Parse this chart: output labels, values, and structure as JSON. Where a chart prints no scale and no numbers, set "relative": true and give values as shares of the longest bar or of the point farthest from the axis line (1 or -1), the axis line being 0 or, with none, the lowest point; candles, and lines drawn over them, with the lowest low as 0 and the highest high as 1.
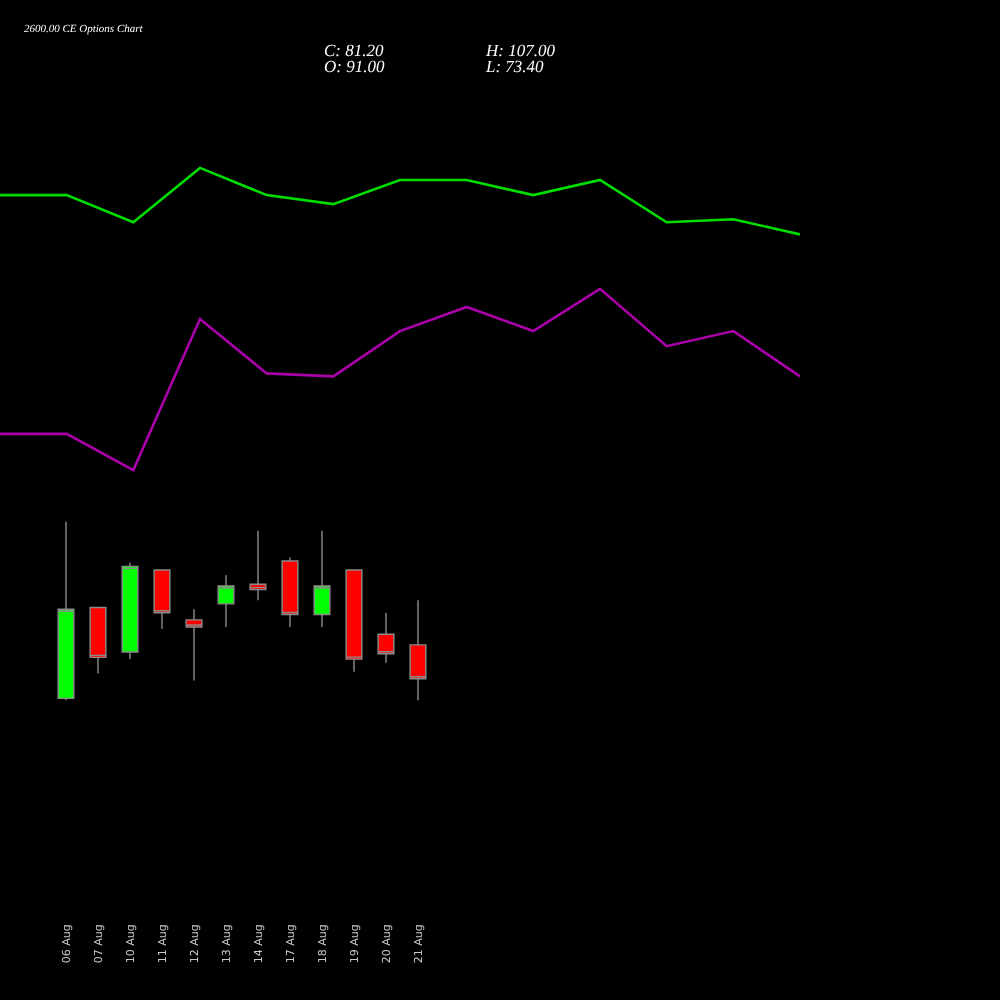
{
  "chart_data": [
    {
      "type": "line",
      "title": "2600.00 CE Options Chart",
      "relative": true,
      "categories": [
        null,
        null,
        null,
        null,
        null,
        null,
        null,
        null,
        null,
        null,
        null,
        null,
        null
      ],
      "series": [
        {
          "color": "#00dd00",
          "values": [
            0.91,
            0.91,
            0.82,
            1.0,
            0.91,
            0.88,
            0.96,
            0.96,
            0.91,
            0.96,
            0.82,
            0.83,
            0.78
          ]
        },
        {
          "color": "#aa00aa",
          "values": [
            0.12,
            0.12,
            0,
            0.5,
            0.32,
            0.31,
            0.46,
            0.54,
            0.46,
            0.6,
            0.41,
            0.46,
            0.31
          ]
        }
      ]
    },
    {
      "type": "candlestick",
      "annotations": [
        "C: 81.20",
        "O: 91.00",
        "H: 107.00",
        "L: 73.40"
      ],
      "relative": true,
      "categories": [
        "06 Aug",
        "07 Aug",
        "10 Aug",
        "11 Aug",
        "12 Aug",
        "13 Aug",
        "14 Aug",
        "17 Aug",
        "18 Aug",
        "19 Aug",
        "20 Aug",
        "21 Aug"
      ],
      "ohlc": [
        [
          0.01,
          1,
          0,
          0.51
        ],
        [
          0.52,
          0.52,
          0.15,
          0.24
        ],
        [
          0.27,
          0.77,
          0.23,
          0.75
        ],
        [
          0.73,
          0.73,
          0.4,
          0.49
        ],
        [
          0.45,
          0.51,
          0.11,
          0.41
        ],
        [
          0.54,
          0.7,
          0.41,
          0.64
        ],
        [
          0.65,
          0.95,
          0.56,
          0.62
        ],
        [
          0.78,
          0.8,
          0.41,
          0.48
        ],
        [
          0.48,
          0.95,
          0.41,
          0.64
        ],
        [
          0.73,
          0.73,
          0.16,
          0.23
        ],
        [
          0.37,
          0.49,
          0.21,
          0.26
        ],
        [
          0.31,
          0.56,
          0,
          0.12
        ]
      ],
      "colors": [
        "#00ff00",
        "#ff0000",
        "#00ff00",
        "#ff0000",
        "#ff0000",
        "#00ff00",
        "#ff0000",
        "#ff0000",
        "#00ff00",
        "#ff0000",
        "#ff0000",
        "#ff0000"
      ]
    }
  ]
}
